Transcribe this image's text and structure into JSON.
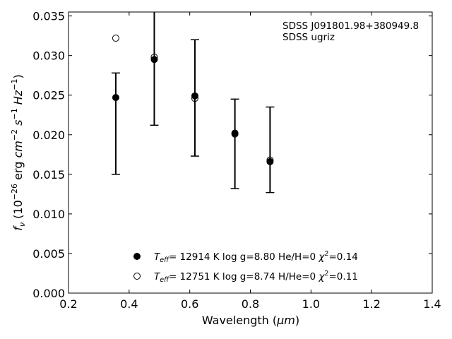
{
  "chart_data": {
    "type": "scatter",
    "xlabel_prefix": "Wavelength (",
    "xlabel_unit": "μm",
    "xlabel_suffix": ")",
    "ylabel": "f_ν (10⁻²⁶ erg cm⁻² s⁻¹ Hz⁻¹)",
    "xlim": [
      0.2,
      1.4
    ],
    "ylim": [
      0.0,
      0.0355
    ],
    "x_ticks": [
      "0.2",
      "0.4",
      "0.6",
      "0.8",
      "1.0",
      "1.2",
      "1.4"
    ],
    "y_ticks": [
      "0.000",
      "0.005",
      "0.010",
      "0.015",
      "0.020",
      "0.025",
      "0.030",
      "0.035"
    ],
    "annotation": [
      "SDSS J091801.98+380949.8",
      "SDSS ugriz"
    ],
    "observed": {
      "x": [
        0.356,
        0.483,
        0.617,
        0.749,
        0.865
      ],
      "y": [
        0.0247,
        0.0295,
        0.0249,
        0.0202,
        0.0166
      ],
      "err_low": [
        0.015,
        0.0212,
        0.0173,
        0.0132,
        0.0127
      ],
      "err_high": [
        0.0278,
        0.0358,
        0.032,
        0.0245,
        0.0235
      ]
    },
    "series": [
      {
        "marker": "filled-circle",
        "label": "T_eff= 12914 K  log g=8.80  He/H=0  χ²=0.14",
        "x": [
          0.356,
          0.483,
          0.617,
          0.749,
          0.865
        ],
        "y": [
          0.0247,
          0.0295,
          0.0249,
          0.0202,
          0.0166
        ]
      },
      {
        "marker": "open-circle",
        "label": "T_eff= 12751 K  log g=8.74  H/He=0  χ²=0.11",
        "x": [
          0.356,
          0.483,
          0.617,
          0.749,
          0.865
        ],
        "y": [
          0.0322,
          0.0298,
          0.0246,
          0.0201,
          0.0168
        ]
      }
    ],
    "grid": false,
    "legend_position": "bottom-center"
  }
}
